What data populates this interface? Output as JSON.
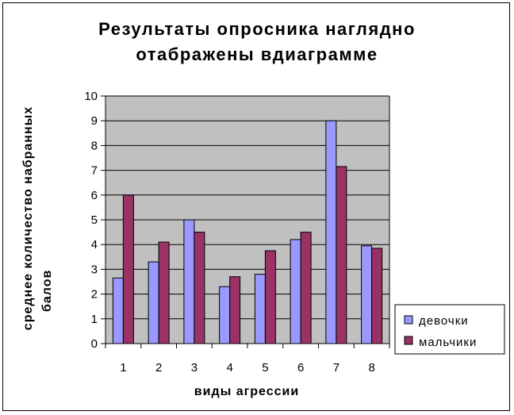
{
  "chart_data": {
    "type": "bar",
    "title_lines": [
      "Результаты опросника наглядно",
      "отабражены вдиаграмме"
    ],
    "xlabel": "виды агрессии",
    "ylabel_lines": [
      "среднее количество набранных",
      "балов"
    ],
    "categories": [
      "1",
      "2",
      "3",
      "4",
      "5",
      "6",
      "7",
      "8"
    ],
    "ylim": [
      0,
      10
    ],
    "yticks": [
      0,
      1,
      2,
      3,
      4,
      5,
      6,
      7,
      8,
      9,
      10
    ],
    "grid": true,
    "legend_position": "right",
    "series": [
      {
        "name": "девочки",
        "color": "#9999FF",
        "values": [
          2.65,
          3.3,
          5.0,
          2.3,
          2.8,
          4.2,
          9.0,
          3.95
        ]
      },
      {
        "name": "мальчики",
        "color": "#993366",
        "values": [
          6.0,
          4.1,
          4.5,
          2.7,
          3.75,
          4.5,
          7.15,
          3.85
        ]
      }
    ],
    "plot_background": "#C0C0C0"
  }
}
